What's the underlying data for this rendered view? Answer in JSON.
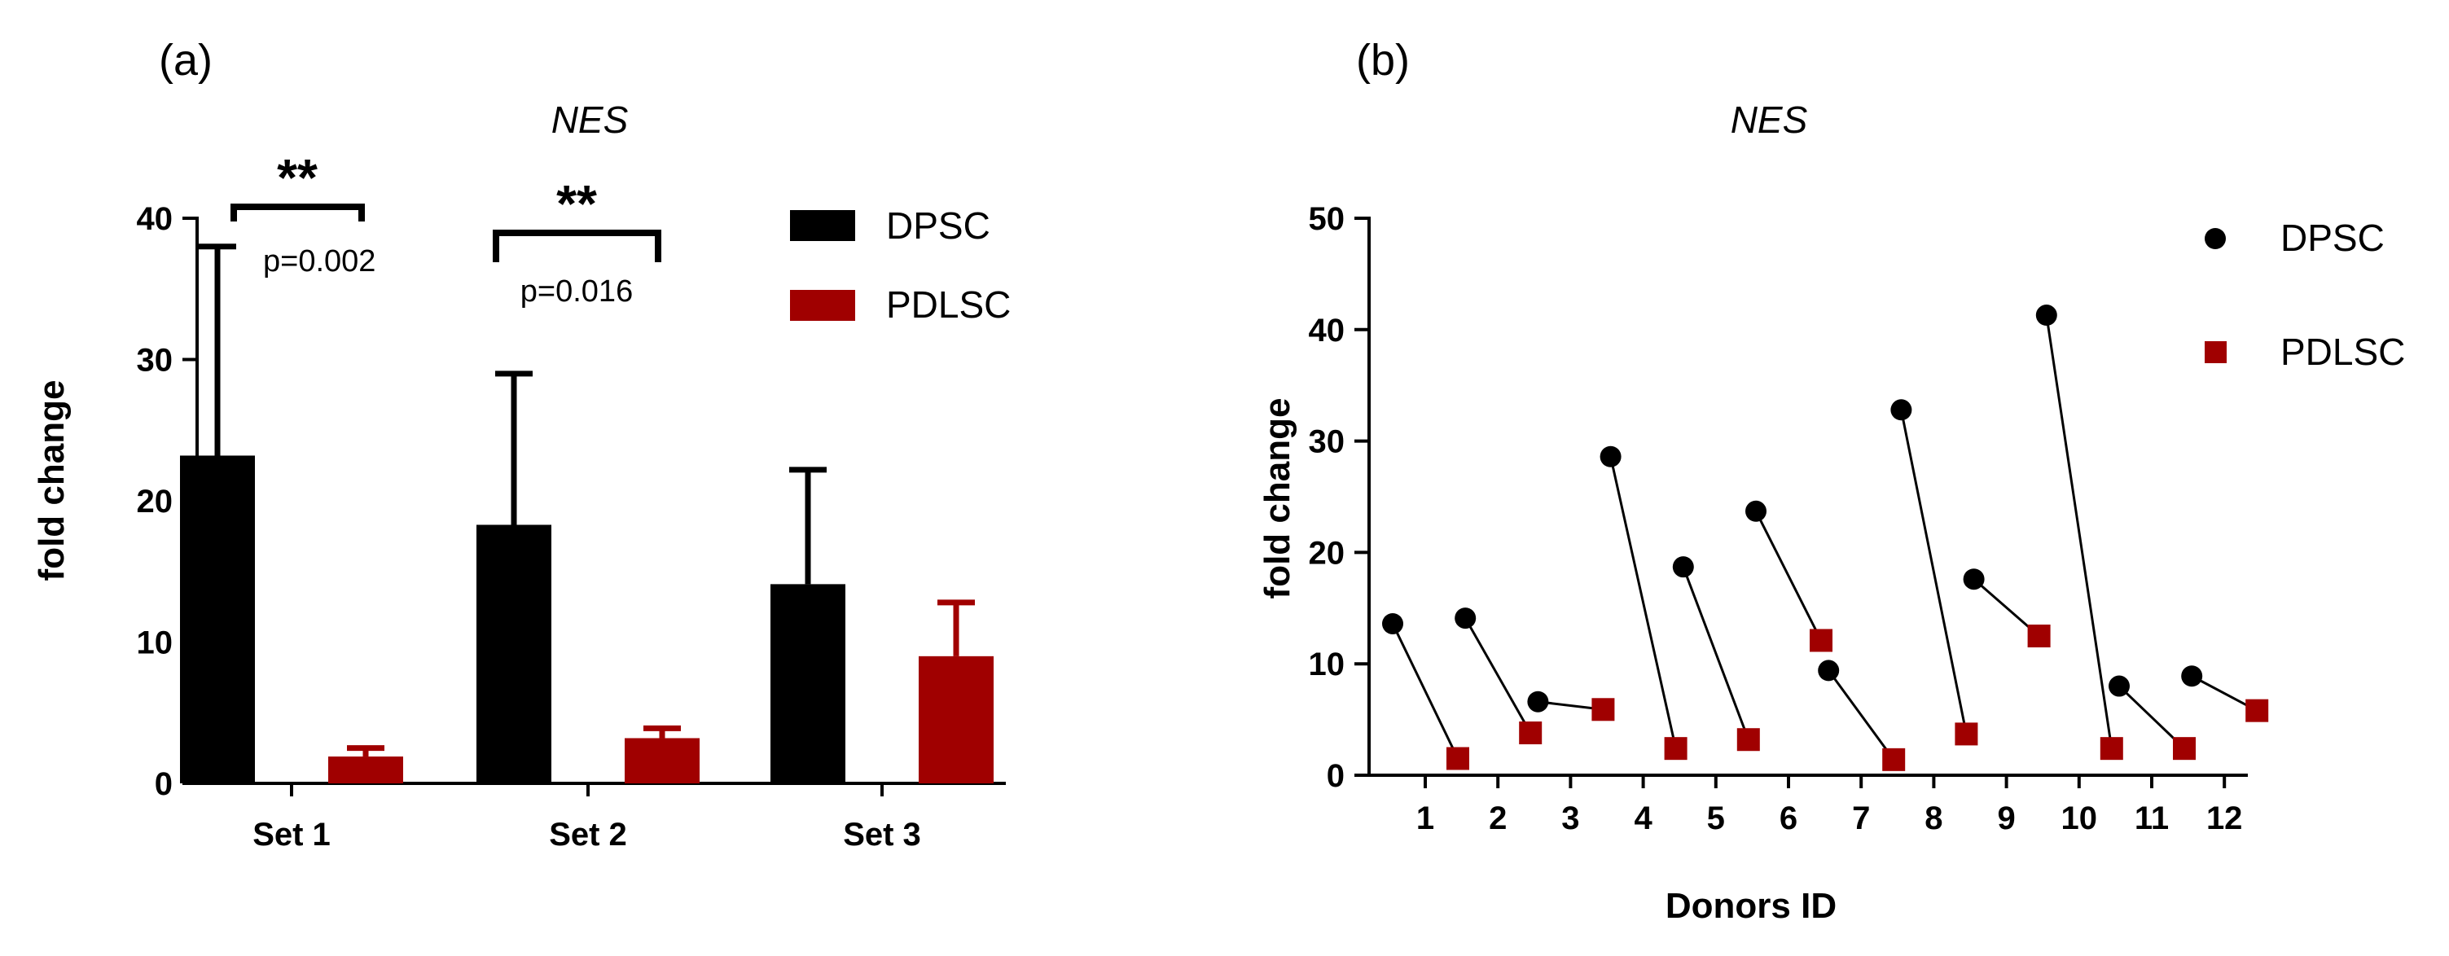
{
  "colors": {
    "dpsc": "#000000",
    "pdlsc": "#a00000"
  },
  "chart_data": [
    {
      "type": "bar",
      "panel_label": "(a)",
      "title": "NES",
      "xlabel": "",
      "ylabel": "fold change",
      "ylim": [
        0,
        40
      ],
      "yticks": [
        0,
        10,
        20,
        30,
        40
      ],
      "categories": [
        "Set 1",
        "Set 2",
        "Set 3"
      ],
      "series": [
        {
          "name": "DPSC",
          "values": [
            23.2,
            18.3,
            14.1
          ],
          "errors": [
            14.8,
            10.7,
            8.1
          ]
        },
        {
          "name": "PDLSC",
          "values": [
            1.9,
            3.2,
            9.0
          ],
          "errors": [
            0.6,
            0.7,
            3.8
          ]
        }
      ],
      "legend": [
        "DPSC",
        "PDLSC"
      ],
      "annotations": [
        {
          "category": "Set 1",
          "stars": "**",
          "p": "p=0.002"
        },
        {
          "category": "Set 2",
          "stars": "**",
          "p": "p=0.016"
        }
      ]
    },
    {
      "type": "scatter",
      "panel_label": "(b)",
      "title": "NES",
      "xlabel": "Donors ID",
      "ylabel": "fold change",
      "ylim": [
        0,
        50
      ],
      "yticks": [
        0,
        10,
        20,
        30,
        40,
        50
      ],
      "categories": [
        "1",
        "2",
        "3",
        "4",
        "5",
        "6",
        "7",
        "8",
        "9",
        "10",
        "11",
        "12"
      ],
      "series": [
        {
          "name": "DPSC",
          "values": [
            13.6,
            14.1,
            6.6,
            28.6,
            18.7,
            23.7,
            9.4,
            32.8,
            17.6,
            41.3,
            8.0,
            8.9
          ]
        },
        {
          "name": "PDLSC",
          "values": [
            1.5,
            3.8,
            5.9,
            2.4,
            3.2,
            12.1,
            1.4,
            3.7,
            12.5,
            2.4,
            2.4,
            5.8
          ]
        }
      ],
      "legend": [
        "DPSC",
        "PDLSC"
      ]
    }
  ]
}
